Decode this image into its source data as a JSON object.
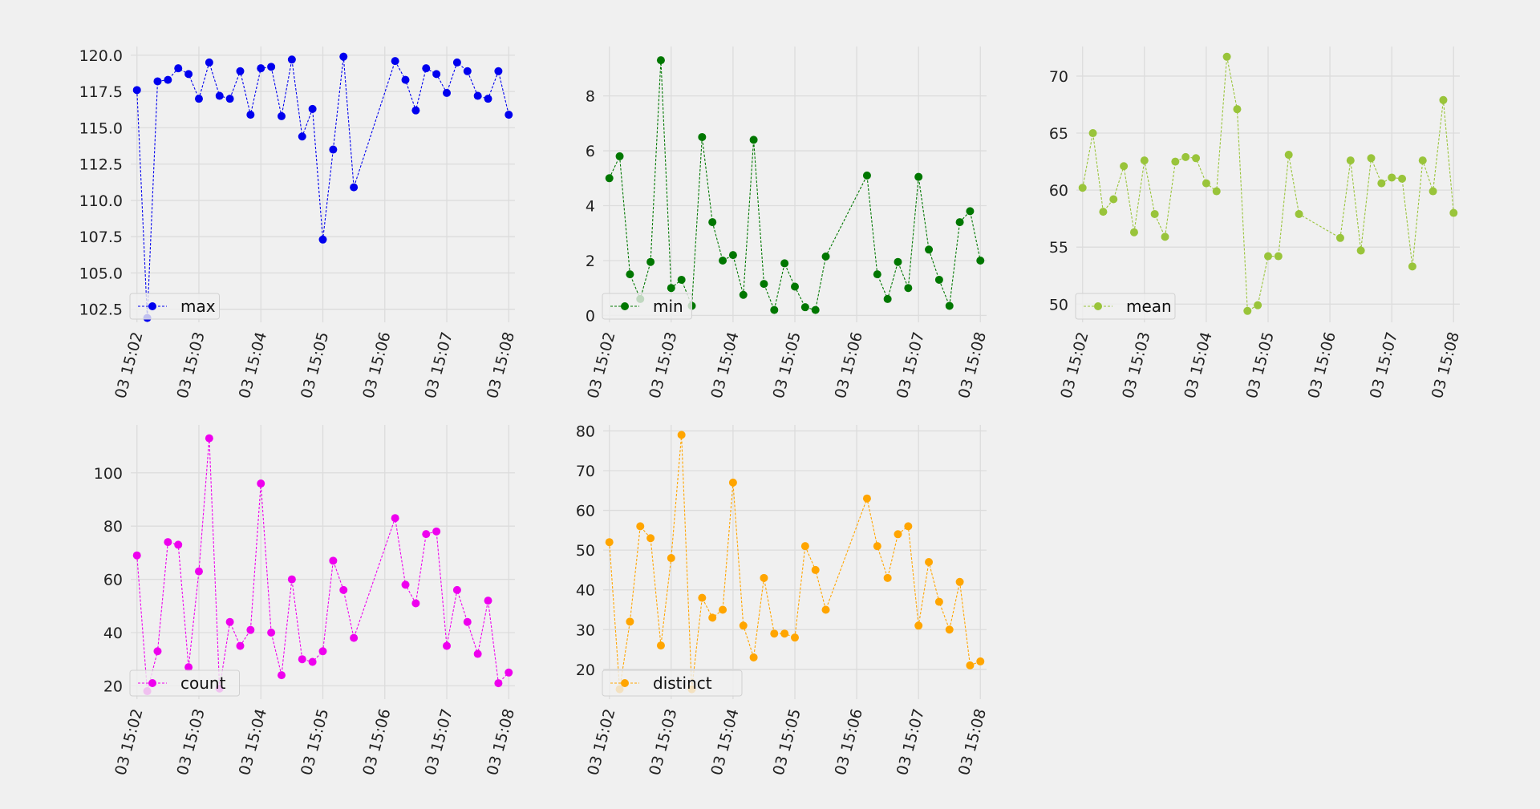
{
  "chart_data": [
    {
      "type": "line",
      "title": "",
      "xlabel": "",
      "ylabel": "",
      "legend": "lower-left",
      "grid": true,
      "color": "#0000ee",
      "xlim": [
        "03 15:01:54",
        "03 15:08:06"
      ],
      "ylim": [
        101.6,
        120.6
      ],
      "yticks": [
        102.5,
        105.0,
        107.5,
        110.0,
        112.5,
        115.0,
        117.5,
        120.0
      ],
      "xticks": [
        "03 15:02",
        "03 15:03",
        "03 15:04",
        "03 15:05",
        "03 15:06",
        "03 15:07",
        "03 15:08"
      ],
      "series": [
        {
          "name": "max",
          "x": [
            "03 15:02:00",
            "03 15:02:10",
            "03 15:02:20",
            "03 15:02:30",
            "03 15:02:40",
            "03 15:02:50",
            "03 15:03:00",
            "03 15:03:10",
            "03 15:03:20",
            "03 15:03:30",
            "03 15:03:40",
            "03 15:03:50",
            "03 15:04:00",
            "03 15:04:10",
            "03 15:04:20",
            "03 15:04:30",
            "03 15:04:40",
            "03 15:04:50",
            "03 15:05:00",
            "03 15:05:10",
            "03 15:05:20",
            "03 15:05:30",
            "03 15:06:10",
            "03 15:06:20",
            "03 15:06:30",
            "03 15:06:40",
            "03 15:06:50",
            "03 15:07:00",
            "03 15:07:10",
            "03 15:07:20",
            "03 15:07:30",
            "03 15:07:40",
            "03 15:07:50",
            "03 15:08:00"
          ],
          "values": [
            117.6,
            101.9,
            118.2,
            118.3,
            119.1,
            118.7,
            117.0,
            119.5,
            117.2,
            117.0,
            118.9,
            115.9,
            119.1,
            119.2,
            115.8,
            119.7,
            114.4,
            116.3,
            107.3,
            113.5,
            119.9,
            110.9,
            119.6,
            118.3,
            116.2,
            119.1,
            118.7,
            117.4,
            119.5,
            118.9,
            117.2,
            117.0,
            118.9,
            115.9
          ]
        }
      ]
    },
    {
      "type": "line",
      "title": "",
      "xlabel": "",
      "ylabel": "",
      "legend": "lower-left",
      "grid": true,
      "color": "#007700",
      "xlim": [
        "03 15:01:54",
        "03 15:08:06"
      ],
      "ylim": [
        -0.25,
        9.8
      ],
      "yticks": [
        0,
        2,
        4,
        6,
        8
      ],
      "xticks": [
        "03 15:02",
        "03 15:03",
        "03 15:04",
        "03 15:05",
        "03 15:06",
        "03 15:07",
        "03 15:08"
      ],
      "series": [
        {
          "name": "min",
          "x": [
            "03 15:02:00",
            "03 15:02:10",
            "03 15:02:20",
            "03 15:02:30",
            "03 15:02:40",
            "03 15:02:50",
            "03 15:03:00",
            "03 15:03:10",
            "03 15:03:20",
            "03 15:03:30",
            "03 15:03:40",
            "03 15:03:50",
            "03 15:04:00",
            "03 15:04:10",
            "03 15:04:20",
            "03 15:04:30",
            "03 15:04:40",
            "03 15:04:50",
            "03 15:05:00",
            "03 15:05:10",
            "03 15:05:20",
            "03 15:05:30",
            "03 15:06:10",
            "03 15:06:20",
            "03 15:06:30",
            "03 15:06:40",
            "03 15:06:50",
            "03 15:07:00",
            "03 15:07:10",
            "03 15:07:20",
            "03 15:07:30",
            "03 15:07:40",
            "03 15:07:50",
            "03 15:08:00"
          ],
          "values": [
            5.0,
            5.8,
            1.5,
            0.6,
            1.95,
            9.3,
            1.0,
            1.3,
            0.35,
            6.5,
            3.4,
            2.0,
            2.2,
            0.75,
            6.4,
            1.15,
            0.2,
            1.9,
            1.05,
            0.3,
            0.2,
            2.15,
            5.1,
            1.5,
            0.6,
            1.95,
            1.0,
            5.05,
            2.4,
            1.3,
            0.35,
            3.4,
            3.8,
            2.0
          ]
        }
      ]
    },
    {
      "type": "line",
      "title": "",
      "xlabel": "",
      "ylabel": "",
      "legend": "lower-left",
      "grid": true,
      "color": "#99c43a",
      "xlim": [
        "03 15:01:54",
        "03 15:08:06"
      ],
      "ylim": [
        48.4,
        72.6
      ],
      "yticks": [
        50,
        55,
        60,
        65,
        70
      ],
      "xticks": [
        "03 15:02",
        "03 15:03",
        "03 15:04",
        "03 15:05",
        "03 15:06",
        "03 15:07",
        "03 15:08"
      ],
      "series": [
        {
          "name": "mean",
          "x": [
            "03 15:02:00",
            "03 15:02:10",
            "03 15:02:20",
            "03 15:02:30",
            "03 15:02:40",
            "03 15:02:50",
            "03 15:03:00",
            "03 15:03:10",
            "03 15:03:20",
            "03 15:03:30",
            "03 15:03:40",
            "03 15:03:50",
            "03 15:04:00",
            "03 15:04:10",
            "03 15:04:20",
            "03 15:04:30",
            "03 15:04:40",
            "03 15:04:50",
            "03 15:05:00",
            "03 15:05:10",
            "03 15:05:20",
            "03 15:05:30",
            "03 15:06:10",
            "03 15:06:20",
            "03 15:06:30",
            "03 15:06:40",
            "03 15:06:50",
            "03 15:07:00",
            "03 15:07:10",
            "03 15:07:20",
            "03 15:07:30",
            "03 15:07:40",
            "03 15:07:50",
            "03 15:08:00"
          ],
          "values": [
            60.2,
            65.0,
            58.1,
            59.2,
            62.1,
            56.3,
            62.6,
            57.9,
            55.9,
            62.5,
            62.9,
            62.8,
            60.6,
            59.9,
            71.7,
            67.1,
            49.4,
            49.9,
            54.2,
            54.2,
            63.1,
            57.9,
            55.8,
            62.6,
            54.7,
            62.8,
            60.6,
            61.1,
            61.0,
            53.3,
            62.6,
            59.9,
            67.9,
            58.0
          ]
        }
      ]
    },
    {
      "type": "line",
      "title": "",
      "xlabel": "",
      "ylabel": "",
      "legend": "lower-left",
      "grid": true,
      "color": "#ee00ee",
      "xlim": [
        "03 15:01:54",
        "03 15:08:06"
      ],
      "ylim": [
        15,
        118
      ],
      "yticks": [
        20,
        40,
        60,
        80,
        100
      ],
      "xticks": [
        "03 15:02",
        "03 15:03",
        "03 15:04",
        "03 15:05",
        "03 15:06",
        "03 15:07",
        "03 15:08"
      ],
      "series": [
        {
          "name": "count",
          "x": [
            "03 15:02:00",
            "03 15:02:10",
            "03 15:02:20",
            "03 15:02:30",
            "03 15:02:40",
            "03 15:02:50",
            "03 15:03:00",
            "03 15:03:10",
            "03 15:03:20",
            "03 15:03:30",
            "03 15:03:40",
            "03 15:03:50",
            "03 15:04:00",
            "03 15:04:10",
            "03 15:04:20",
            "03 15:04:30",
            "03 15:04:40",
            "03 15:04:50",
            "03 15:05:00",
            "03 15:05:10",
            "03 15:05:20",
            "03 15:05:30",
            "03 15:06:10",
            "03 15:06:20",
            "03 15:06:30",
            "03 15:06:40",
            "03 15:06:50",
            "03 15:07:00",
            "03 15:07:10",
            "03 15:07:20",
            "03 15:07:30",
            "03 15:07:40",
            "03 15:07:50",
            "03 15:08:00"
          ],
          "values": [
            69,
            18,
            33,
            74,
            73,
            27,
            63,
            113,
            19,
            44,
            35,
            41,
            96,
            40,
            24,
            60,
            30,
            29,
            33,
            67,
            56,
            38,
            83,
            58,
            51,
            77,
            78,
            35,
            56,
            44,
            32,
            52,
            21,
            25
          ]
        }
      ]
    },
    {
      "type": "line",
      "title": "",
      "xlabel": "",
      "ylabel": "",
      "legend": "lower-left",
      "grid": true,
      "color": "#ffa500",
      "xlim": [
        "03 15:01:54",
        "03 15:08:06"
      ],
      "ylim": [
        12.5,
        81.5
      ],
      "yticks": [
        20,
        30,
        40,
        50,
        60,
        70,
        80
      ],
      "xticks": [
        "03 15:02",
        "03 15:03",
        "03 15:04",
        "03 15:05",
        "03 15:06",
        "03 15:07",
        "03 15:08"
      ],
      "series": [
        {
          "name": "distinct",
          "x": [
            "03 15:02:00",
            "03 15:02:10",
            "03 15:02:20",
            "03 15:02:30",
            "03 15:02:40",
            "03 15:02:50",
            "03 15:03:00",
            "03 15:03:10",
            "03 15:03:20",
            "03 15:03:30",
            "03 15:03:40",
            "03 15:03:50",
            "03 15:04:00",
            "03 15:04:10",
            "03 15:04:20",
            "03 15:04:30",
            "03 15:04:40",
            "03 15:04:50",
            "03 15:05:00",
            "03 15:05:10",
            "03 15:05:20",
            "03 15:05:30",
            "03 15:06:10",
            "03 15:06:20",
            "03 15:06:30",
            "03 15:06:40",
            "03 15:06:50",
            "03 15:07:00",
            "03 15:07:10",
            "03 15:07:20",
            "03 15:07:30",
            "03 15:07:40",
            "03 15:07:50",
            "03 15:08:00"
          ],
          "values": [
            52,
            15,
            32,
            56,
            53,
            26,
            48,
            79,
            15,
            38,
            33,
            35,
            67,
            31,
            23,
            43,
            29,
            29,
            28,
            51,
            45,
            35,
            63,
            51,
            43,
            54,
            56,
            31,
            47,
            37,
            30,
            42,
            21,
            22
          ]
        }
      ]
    }
  ]
}
